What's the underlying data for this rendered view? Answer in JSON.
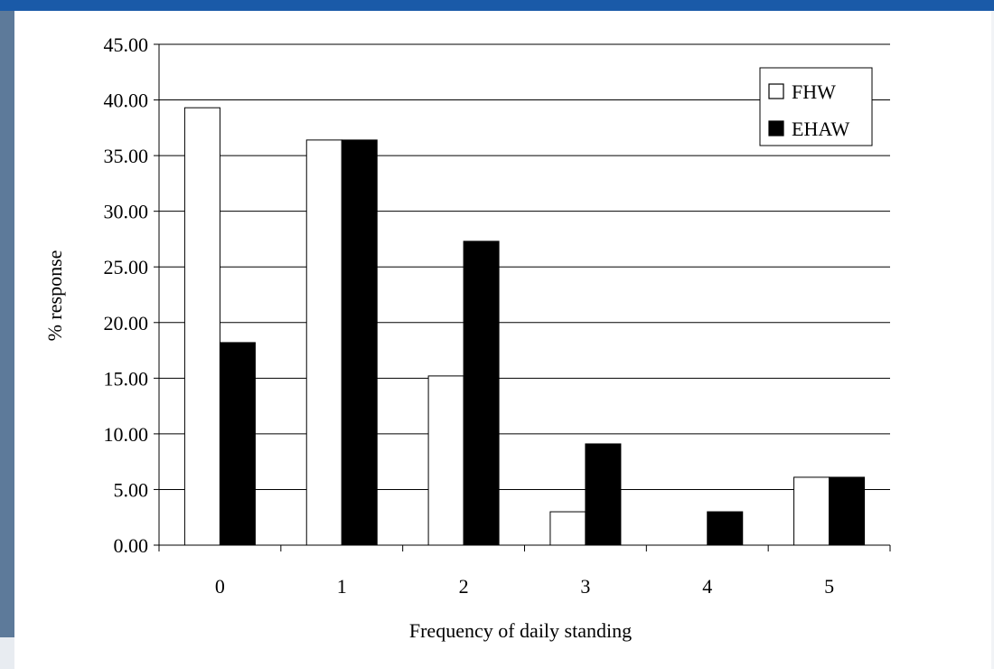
{
  "theme": {
    "top_band_color": "#1a5aa8",
    "left_band_color": "#5d7a9a",
    "fhw_color": "#ffffff",
    "ehaw_color": "#000000"
  },
  "chart_data": {
    "type": "bar",
    "title": "",
    "xlabel": "Frequency of daily standing",
    "ylabel": "% response",
    "categories": [
      "0",
      "1",
      "2",
      "3",
      "4",
      "5"
    ],
    "series": [
      {
        "name": "FHW",
        "values": [
          39.3,
          36.4,
          15.2,
          3.0,
          0.0,
          6.1
        ],
        "fill": "#ffffff"
      },
      {
        "name": "EHAW",
        "values": [
          18.2,
          36.4,
          27.3,
          9.1,
          3.0,
          6.1
        ],
        "fill": "#000000"
      }
    ],
    "ylim": [
      0,
      45
    ],
    "yticks": [
      "0.00",
      "5.00",
      "10.00",
      "15.00",
      "20.00",
      "25.00",
      "30.00",
      "35.00",
      "40.00",
      "45.00"
    ],
    "grid": true,
    "legend_position": "top-right"
  }
}
